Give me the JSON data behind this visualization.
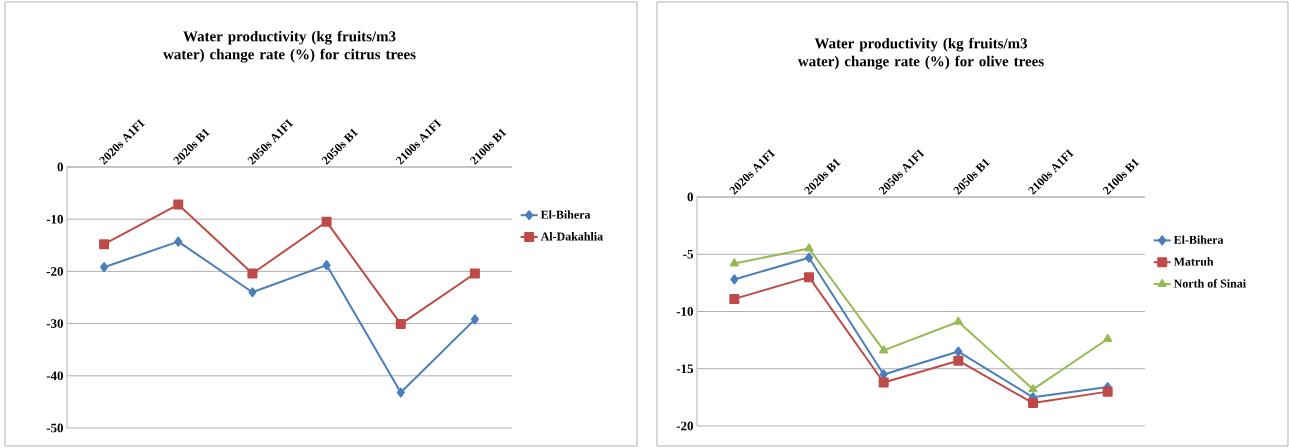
{
  "chart_data": [
    {
      "type": "line",
      "title": "Water productivity (kg fruits/m3 water) change rate (%) for citrus trees",
      "categories": [
        "2020s A1FI",
        "2020s B1",
        "2050s A1FI",
        "2050s B1",
        "2100s A1FI",
        "2100s B1"
      ],
      "series": [
        {
          "name": "El-Bihera",
          "color": "#4a7ebb",
          "marker": "diamond",
          "values": [
            -19.2,
            -14.3,
            -24.0,
            -18.8,
            -43.2,
            -29.2
          ]
        },
        {
          "name": "Al-Dakahlia",
          "color": "#be4b48",
          "marker": "square",
          "values": [
            -14.8,
            -7.2,
            -20.4,
            -10.5,
            -30.1,
            -20.4
          ]
        }
      ],
      "ylim": [
        -50,
        0
      ],
      "yticks": [
        -50,
        -40,
        -30,
        -20,
        -10,
        0
      ],
      "grid": "y",
      "legend": "right"
    },
    {
      "type": "line",
      "title": "Water productivity (kg fruits/m3 water) change rate (%) for olive trees",
      "categories": [
        "2020s A1FI",
        "2020s B1",
        "2050s A1FI",
        "2050s B1",
        "2100s A1FI",
        "2100s B1"
      ],
      "series": [
        {
          "name": "El-Bihera",
          "color": "#4a7ebb",
          "marker": "diamond",
          "values": [
            -7.2,
            -5.3,
            -15.5,
            -13.5,
            -17.5,
            -16.6
          ]
        },
        {
          "name": "Matruh",
          "color": "#be4b48",
          "marker": "square",
          "values": [
            -8.9,
            -7.0,
            -16.2,
            -14.3,
            -18.0,
            -17.0
          ]
        },
        {
          "name": "North of Sinai",
          "color": "#98b954",
          "marker": "triangle",
          "values": [
            -5.8,
            -4.5,
            -13.4,
            -10.9,
            -16.8,
            -12.4
          ]
        }
      ],
      "ylim": [
        -20,
        0
      ],
      "yticks": [
        -20,
        -15,
        -10,
        -5,
        0
      ],
      "grid": "y",
      "legend": "right"
    }
  ]
}
